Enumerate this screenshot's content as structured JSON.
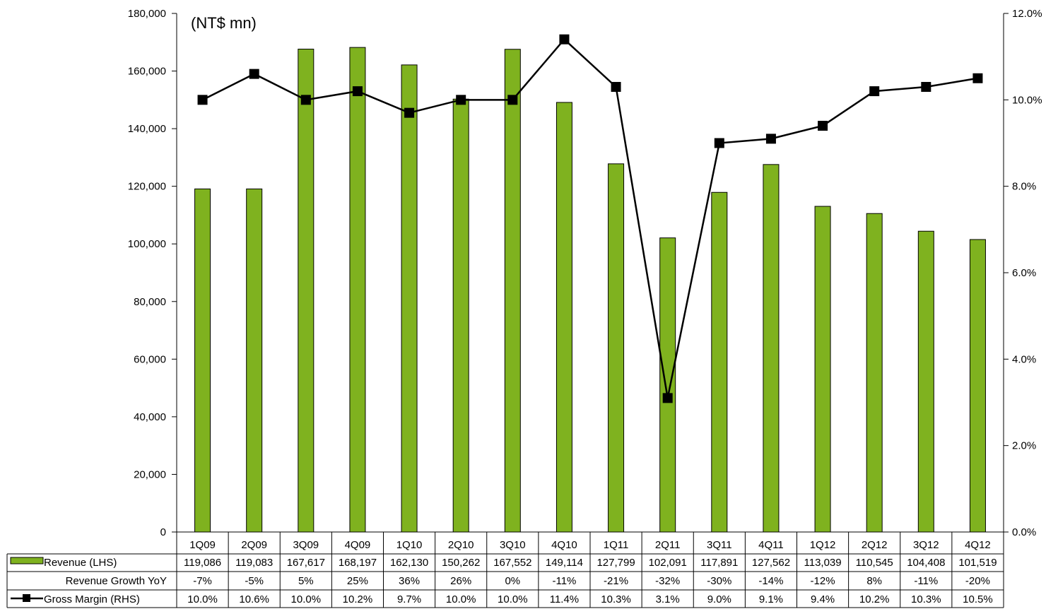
{
  "chart_data": {
    "type": "bar",
    "unit_label": "(NT$ mn)",
    "categories": [
      "1Q09",
      "2Q09",
      "3Q09",
      "4Q09",
      "1Q10",
      "2Q10",
      "3Q10",
      "4Q10",
      "1Q11",
      "2Q11",
      "3Q11",
      "4Q11",
      "1Q12",
      "2Q12",
      "3Q12",
      "4Q12"
    ],
    "series": [
      {
        "name": "Revenue (LHS)",
        "type": "bar",
        "axis": "left",
        "color": "#7fb21f",
        "values": [
          119086,
          119083,
          167617,
          168197,
          162130,
          150262,
          167552,
          149114,
          127799,
          102091,
          117891,
          127562,
          113039,
          110545,
          104408,
          101519
        ],
        "labels": [
          "119,086",
          "119,083",
          "167,617",
          "168,197",
          "162,130",
          "150,262",
          "167,552",
          "149,114",
          "127,799",
          "102,091",
          "117,891",
          "127,562",
          "113,039",
          "110,545",
          "104,408",
          "101,519"
        ]
      },
      {
        "name": "Gross Margin (RHS)",
        "type": "line",
        "axis": "right",
        "color": "#000000",
        "values": [
          10.0,
          10.6,
          10.0,
          10.2,
          9.7,
          10.0,
          10.0,
          11.4,
          10.3,
          3.1,
          9.0,
          9.1,
          9.4,
          10.2,
          10.3,
          10.5
        ],
        "labels": [
          "10.0%",
          "10.6%",
          "10.0%",
          "10.2%",
          "9.7%",
          "10.0%",
          "10.0%",
          "11.4%",
          "10.3%",
          "3.1%",
          "9.0%",
          "9.1%",
          "9.4%",
          "10.2%",
          "10.3%",
          "10.5%"
        ]
      }
    ],
    "table_rows": [
      {
        "name": "Revenue Growth YoY",
        "labels": [
          "-7%",
          "-5%",
          "5%",
          "25%",
          "36%",
          "26%",
          "0%",
          "-11%",
          "-21%",
          "-32%",
          "-30%",
          "-14%",
          "-12%",
          "8%",
          "-11%",
          "-20%"
        ]
      }
    ],
    "left_axis": {
      "ylim": [
        0,
        180000
      ],
      "ticks": [
        0,
        20000,
        40000,
        60000,
        80000,
        100000,
        120000,
        140000,
        160000,
        180000
      ],
      "tick_labels": [
        "0",
        "20,000",
        "40,000",
        "60,000",
        "80,000",
        "100,000",
        "120,000",
        "140,000",
        "160,000",
        "180,000"
      ]
    },
    "right_axis": {
      "ylim": [
        0,
        12
      ],
      "ticks": [
        0,
        2,
        4,
        6,
        8,
        10,
        12
      ],
      "tick_labels": [
        "0.0%",
        "2.0%",
        "4.0%",
        "6.0%",
        "8.0%",
        "10.0%",
        "12.0%"
      ]
    },
    "grid": false,
    "legend": "data-table"
  }
}
